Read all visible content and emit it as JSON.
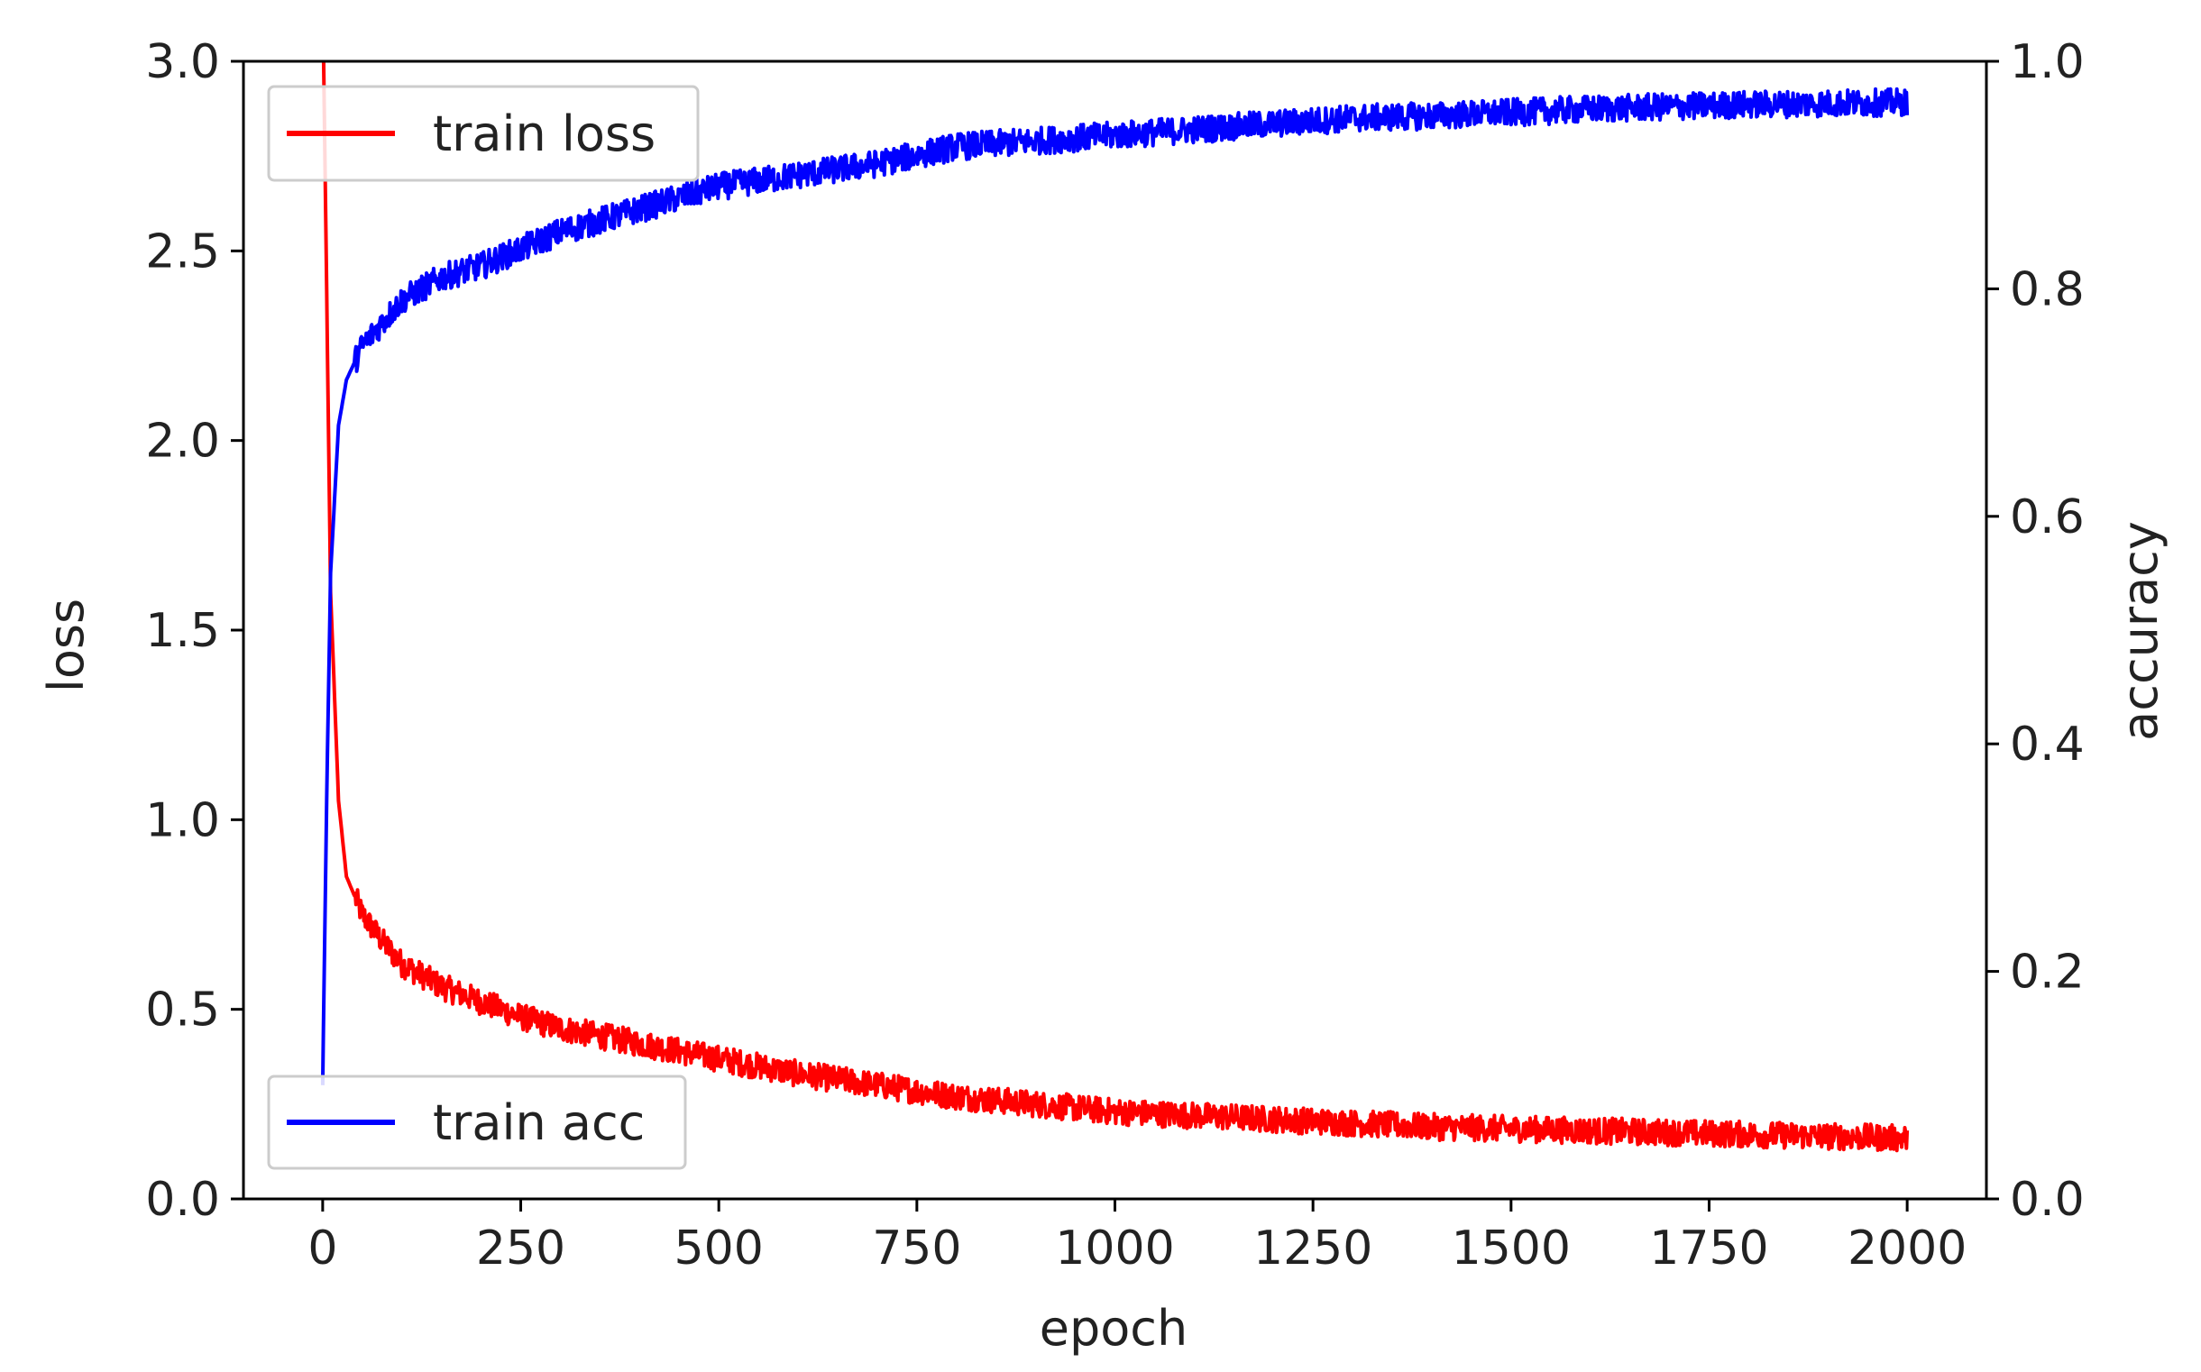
{
  "chart_data": {
    "type": "line",
    "title": "",
    "xlabel": "epoch",
    "ylabel_left": "loss",
    "ylabel_right": "accuracy",
    "xlim": [
      -100,
      2100
    ],
    "ylim_left": [
      0.0,
      3.0
    ],
    "ylim_right": [
      0.0,
      1.0
    ],
    "x_ticks": [
      "0",
      "250",
      "500",
      "750",
      "1000",
      "1250",
      "1500",
      "1750",
      "2000"
    ],
    "y_left_ticks": [
      "0.0",
      "0.5",
      "1.0",
      "1.5",
      "2.0",
      "2.5",
      "3.0"
    ],
    "y_right_ticks": [
      "0.0",
      "0.2",
      "0.4",
      "0.6",
      "0.8",
      "1.0"
    ],
    "grid": false,
    "series": [
      {
        "name": "train loss",
        "axis": "left",
        "color": "#ff0000",
        "legend_position": "upper-left",
        "x": [
          0,
          5,
          10,
          20,
          30,
          50,
          75,
          100,
          150,
          200,
          250,
          300,
          400,
          500,
          600,
          700,
          800,
          900,
          1000,
          1100,
          1200,
          1300,
          1400,
          1500,
          1600,
          1700,
          1800,
          1900,
          2000
        ],
        "y": [
          3.2,
          2.4,
          1.6,
          1.05,
          0.85,
          0.75,
          0.68,
          0.62,
          0.56,
          0.52,
          0.48,
          0.45,
          0.41,
          0.37,
          0.33,
          0.3,
          0.27,
          0.25,
          0.23,
          0.22,
          0.21,
          0.2,
          0.19,
          0.185,
          0.18,
          0.175,
          0.17,
          0.165,
          0.16
        ]
      },
      {
        "name": "train acc",
        "axis": "right",
        "color": "#0000ff",
        "legend_position": "lower-left",
        "x": [
          0,
          5,
          10,
          20,
          30,
          50,
          75,
          100,
          150,
          200,
          250,
          300,
          400,
          500,
          600,
          700,
          800,
          900,
          1000,
          1100,
          1200,
          1300,
          1400,
          1500,
          1600,
          1700,
          1800,
          1900,
          2000
        ],
        "y": [
          0.1,
          0.35,
          0.55,
          0.68,
          0.72,
          0.75,
          0.77,
          0.79,
          0.81,
          0.82,
          0.835,
          0.85,
          0.87,
          0.89,
          0.9,
          0.91,
          0.925,
          0.93,
          0.935,
          0.94,
          0.945,
          0.95,
          0.952,
          0.955,
          0.958,
          0.96,
          0.962,
          0.963,
          0.964
        ]
      }
    ]
  }
}
